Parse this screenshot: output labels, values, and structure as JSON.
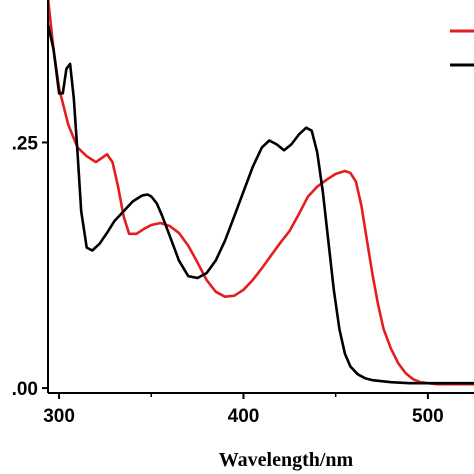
{
  "chart_data": {
    "type": "line",
    "title": "",
    "xlabel": "Wavelength/nm",
    "ylabel": "",
    "xlim": [
      294,
      525
    ],
    "ylim": [
      -0.005,
      0.395
    ],
    "x_ticks": [
      300,
      400,
      500
    ],
    "x_tick_labels": [
      "300",
      "400",
      "500"
    ],
    "y_ticks": [
      0.0,
      0.25
    ],
    "y_tick_labels": [
      ".00",
      ".25"
    ],
    "grid": false,
    "legend": {
      "placement": "top-right",
      "entries_visible_text": false
    },
    "series": [
      {
        "color": "#e41e1e",
        "x": [
          294,
          297,
          300,
          305,
          310,
          315,
          320,
          323,
          326,
          329,
          332,
          335,
          338,
          342,
          346,
          350,
          355,
          360,
          365,
          370,
          375,
          380,
          385,
          390,
          395,
          400,
          405,
          410,
          415,
          420,
          425,
          430,
          435,
          440,
          445,
          450,
          455,
          458,
          461,
          464,
          467,
          470,
          473,
          476,
          480,
          484,
          488,
          492,
          496,
          500,
          505,
          510,
          515,
          520,
          525
        ],
        "y": [
          0.397,
          0.345,
          0.305,
          0.268,
          0.245,
          0.236,
          0.23,
          0.234,
          0.238,
          0.23,
          0.205,
          0.175,
          0.157,
          0.157,
          0.162,
          0.166,
          0.168,
          0.165,
          0.158,
          0.145,
          0.128,
          0.11,
          0.098,
          0.093,
          0.094,
          0.1,
          0.11,
          0.122,
          0.135,
          0.148,
          0.16,
          0.177,
          0.195,
          0.205,
          0.212,
          0.218,
          0.221,
          0.219,
          0.21,
          0.185,
          0.15,
          0.115,
          0.085,
          0.06,
          0.04,
          0.025,
          0.015,
          0.009,
          0.006,
          0.005,
          0.004,
          0.004,
          0.004,
          0.004,
          0.004
        ]
      },
      {
        "color": "#000000",
        "x": [
          294,
          297,
          300,
          302,
          304,
          306,
          308,
          310,
          312,
          315,
          318,
          322,
          326,
          330,
          335,
          340,
          345,
          348,
          350,
          353,
          356,
          360,
          365,
          370,
          375,
          380,
          385,
          390,
          395,
          400,
          405,
          410,
          414,
          418,
          422,
          426,
          430,
          434,
          437,
          440,
          443,
          446,
          449,
          452,
          455,
          458,
          462,
          466,
          470,
          475,
          480,
          490,
          500,
          510,
          525
        ],
        "y": [
          0.37,
          0.345,
          0.3,
          0.3,
          0.325,
          0.33,
          0.295,
          0.24,
          0.18,
          0.143,
          0.14,
          0.147,
          0.158,
          0.17,
          0.18,
          0.19,
          0.196,
          0.197,
          0.195,
          0.188,
          0.175,
          0.155,
          0.13,
          0.114,
          0.112,
          0.117,
          0.13,
          0.15,
          0.175,
          0.2,
          0.225,
          0.245,
          0.252,
          0.248,
          0.242,
          0.248,
          0.258,
          0.265,
          0.262,
          0.24,
          0.2,
          0.15,
          0.1,
          0.06,
          0.035,
          0.022,
          0.014,
          0.01,
          0.008,
          0.007,
          0.006,
          0.005,
          0.005,
          0.005,
          0.005
        ]
      }
    ]
  }
}
